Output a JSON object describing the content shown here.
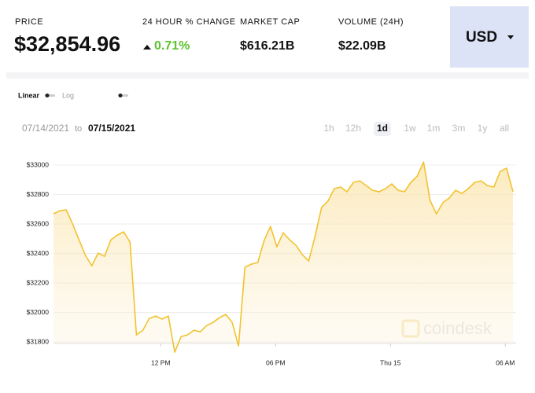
{
  "stats": [
    {
      "label": "PRICE",
      "value": "$32,854.96"
    },
    {
      "label": "24 HOUR % CHANGE",
      "value": "0.71%"
    },
    {
      "label": "MARKET CAP",
      "value": "$616.21B"
    },
    {
      "label": "VOLUME (24H)",
      "value": "$22.09B"
    }
  ],
  "currency": "USD",
  "scale_toggle": [
    "Linear",
    "Log"
  ],
  "date_range": {
    "from": "07/14/2021",
    "joiner": "to",
    "to": "07/15/2021"
  },
  "ranges": [
    "1h",
    "12h",
    "1d",
    "1w",
    "1m",
    "3m",
    "1y",
    "all"
  ],
  "active_range": "1d",
  "watermark": "coindesk",
  "chart_data": {
    "type": "line",
    "color": "#f2c230",
    "values": [
      32669,
      32691,
      32696,
      32600,
      32493,
      32387,
      32317,
      32403,
      32381,
      32493,
      32525,
      32547,
      32477,
      31848,
      31880,
      31960,
      31976,
      31955,
      31976,
      31731,
      31837,
      31848,
      31880,
      31869,
      31912,
      31933,
      31965,
      31987,
      31933,
      31773,
      32307,
      32328,
      32339,
      32488,
      32584,
      32445,
      32541,
      32493,
      32456,
      32392,
      32349,
      32520,
      32712,
      32755,
      32840,
      32851,
      32819,
      32883,
      32893,
      32861,
      32829,
      32819,
      32840,
      32872,
      32829,
      32819,
      32883,
      32925,
      33021,
      32760,
      32669,
      32744,
      32776,
      32829,
      32808,
      32840,
      32883,
      32893,
      32861,
      32851,
      32957,
      32979,
      32819
    ],
    "xlim": [
      0,
      72
    ],
    "xticks": [
      {
        "value": 16.8,
        "label": "12 PM"
      },
      {
        "value": 34.8,
        "label": "06 PM"
      },
      {
        "value": 52.8,
        "label": "Thu 15"
      },
      {
        "value": 70.8,
        "label": "06 AM"
      }
    ],
    "ylim": [
      31790,
      33080
    ],
    "yticks": [
      {
        "value": 31800,
        "label": "$31800"
      },
      {
        "value": 32000,
        "label": "$32000"
      },
      {
        "value": 32200,
        "label": "$32200"
      },
      {
        "value": 32400,
        "label": "$32400"
      },
      {
        "value": 32600,
        "label": "$32600"
      },
      {
        "value": 32800,
        "label": "$32800"
      },
      {
        "value": 33000,
        "label": "$33000"
      }
    ],
    "grid": true
  }
}
